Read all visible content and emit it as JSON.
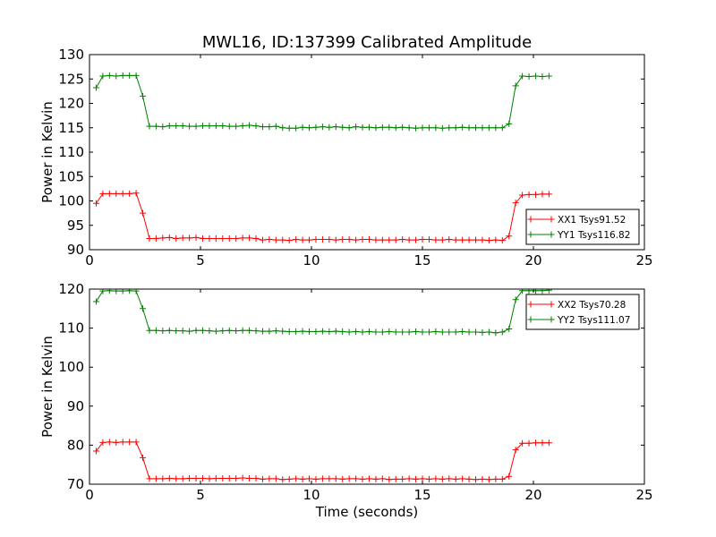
{
  "chart_data": [
    {
      "type": "line",
      "title": "MWL16, ID:137399 Calibrated Amplitude",
      "xlabel": "",
      "ylabel": "Power in Kelvin",
      "xlim": [
        0,
        25
      ],
      "ylim": [
        90,
        130
      ],
      "xticks": [
        "0",
        "5",
        "10",
        "15",
        "20",
        "25"
      ],
      "yticks": [
        "90",
        "95",
        "100",
        "105",
        "110",
        "115",
        "120",
        "125",
        "130"
      ],
      "grid": false,
      "legend": "lower-right",
      "x": [
        0.3,
        0.6,
        0.9,
        1.2,
        1.5,
        1.8,
        2.1,
        2.4,
        2.7,
        3.0,
        3.3,
        3.6,
        3.9,
        4.2,
        4.5,
        4.8,
        5.1,
        5.4,
        5.7,
        6.0,
        6.3,
        6.6,
        6.9,
        7.2,
        7.5,
        7.8,
        8.1,
        8.4,
        8.7,
        9.0,
        9.3,
        9.6,
        9.9,
        10.2,
        10.5,
        10.8,
        11.1,
        11.4,
        11.7,
        12.0,
        12.3,
        12.6,
        12.9,
        13.2,
        13.5,
        13.8,
        14.1,
        14.4,
        14.7,
        15.0,
        15.3,
        15.6,
        15.9,
        16.2,
        16.5,
        16.8,
        17.1,
        17.4,
        17.7,
        18.0,
        18.3,
        18.6,
        18.9,
        19.2,
        19.5,
        19.8,
        20.1,
        20.4,
        20.7
      ],
      "series": [
        {
          "name": "XX1 Tsys91.52",
          "color": "#ff0000",
          "values": [
            99.5,
            101.5,
            101.5,
            101.5,
            101.5,
            101.5,
            101.6,
            97.5,
            92.3,
            92.3,
            92.4,
            92.5,
            92.3,
            92.4,
            92.4,
            92.5,
            92.3,
            92.3,
            92.3,
            92.3,
            92.3,
            92.3,
            92.4,
            92.4,
            92.3,
            92.0,
            92.1,
            92.0,
            92.0,
            91.9,
            92.1,
            92.0,
            92.0,
            92.1,
            92.1,
            92.1,
            92.0,
            92.1,
            92.1,
            92.0,
            92.1,
            92.1,
            92.0,
            92.0,
            92.0,
            92.0,
            92.1,
            92.0,
            92.0,
            92.1,
            92.1,
            92.0,
            92.0,
            92.1,
            92.0,
            92.0,
            92.0,
            92.0,
            92.0,
            91.9,
            92.0,
            91.9,
            92.8,
            99.6,
            101.2,
            101.3,
            101.3,
            101.4,
            101.4
          ]
        },
        {
          "name": "YY1 Tsys116.82",
          "color": "#008000",
          "values": [
            123.2,
            125.6,
            125.7,
            125.6,
            125.7,
            125.7,
            125.7,
            121.5,
            115.3,
            115.3,
            115.2,
            115.4,
            115.4,
            115.4,
            115.3,
            115.3,
            115.4,
            115.4,
            115.4,
            115.4,
            115.3,
            115.3,
            115.4,
            115.5,
            115.4,
            115.2,
            115.2,
            115.3,
            115.0,
            114.9,
            114.9,
            115.1,
            115.0,
            115.1,
            115.2,
            115.1,
            115.2,
            115.1,
            115.0,
            115.2,
            115.1,
            115.1,
            115.0,
            115.1,
            115.1,
            115.0,
            115.1,
            115.0,
            114.9,
            115.0,
            115.0,
            115.0,
            114.9,
            115.0,
            115.0,
            115.1,
            115.0,
            115.0,
            115.0,
            115.0,
            115.0,
            115.0,
            115.8,
            123.6,
            125.6,
            125.5,
            125.6,
            125.5,
            125.6
          ]
        }
      ]
    },
    {
      "type": "line",
      "title": "",
      "xlabel": "Time (seconds)",
      "ylabel": "Power in Kelvin",
      "xlim": [
        0,
        25
      ],
      "ylim": [
        70,
        120
      ],
      "xticks": [
        "0",
        "5",
        "10",
        "15",
        "20",
        "25"
      ],
      "yticks": [
        "70",
        "80",
        "90",
        "100",
        "110",
        "120"
      ],
      "grid": false,
      "legend": "top-right",
      "x": [
        0.3,
        0.6,
        0.9,
        1.2,
        1.5,
        1.8,
        2.1,
        2.4,
        2.7,
        3.0,
        3.3,
        3.6,
        3.9,
        4.2,
        4.5,
        4.8,
        5.1,
        5.4,
        5.7,
        6.0,
        6.3,
        6.6,
        6.9,
        7.2,
        7.5,
        7.8,
        8.1,
        8.4,
        8.7,
        9.0,
        9.3,
        9.6,
        9.9,
        10.2,
        10.5,
        10.8,
        11.1,
        11.4,
        11.7,
        12.0,
        12.3,
        12.6,
        12.9,
        13.2,
        13.5,
        13.8,
        14.1,
        14.4,
        14.7,
        15.0,
        15.3,
        15.6,
        15.9,
        16.2,
        16.5,
        16.8,
        17.1,
        17.4,
        17.7,
        18.0,
        18.3,
        18.6,
        18.9,
        19.2,
        19.5,
        19.8,
        20.1,
        20.4,
        20.7
      ],
      "series": [
        {
          "name": "XX2 Tsys70.28",
          "color": "#ff0000",
          "values": [
            78.5,
            80.7,
            80.8,
            80.7,
            80.8,
            80.8,
            80.8,
            76.8,
            71.4,
            71.4,
            71.4,
            71.5,
            71.4,
            71.4,
            71.5,
            71.5,
            71.5,
            71.4,
            71.5,
            71.5,
            71.5,
            71.5,
            71.6,
            71.5,
            71.5,
            71.3,
            71.4,
            71.4,
            71.2,
            71.3,
            71.4,
            71.3,
            71.4,
            71.3,
            71.4,
            71.4,
            71.4,
            71.3,
            71.4,
            71.4,
            71.3,
            71.4,
            71.3,
            71.4,
            71.2,
            71.3,
            71.3,
            71.4,
            71.3,
            71.4,
            71.3,
            71.4,
            71.3,
            71.4,
            71.3,
            71.4,
            71.3,
            71.2,
            71.3,
            71.2,
            71.3,
            71.3,
            72.0,
            78.8,
            80.5,
            80.5,
            80.6,
            80.6,
            80.6
          ]
        },
        {
          "name": "YY2 Tsys111.07",
          "color": "#008000",
          "values": [
            116.8,
            119.5,
            119.6,
            119.5,
            119.5,
            119.6,
            119.5,
            115.0,
            109.4,
            109.4,
            109.3,
            109.4,
            109.3,
            109.3,
            109.2,
            109.4,
            109.4,
            109.3,
            109.2,
            109.3,
            109.4,
            109.3,
            109.4,
            109.4,
            109.3,
            109.2,
            109.2,
            109.3,
            109.2,
            109.1,
            109.1,
            109.2,
            109.1,
            109.1,
            109.2,
            109.1,
            109.2,
            109.1,
            109.0,
            109.1,
            109.0,
            109.1,
            109.0,
            109.0,
            109.1,
            109.0,
            109.0,
            109.0,
            109.1,
            109.0,
            109.0,
            109.1,
            109.0,
            109.0,
            109.0,
            109.1,
            109.0,
            109.0,
            108.9,
            109.0,
            108.8,
            109.0,
            109.8,
            117.3,
            119.6,
            119.6,
            119.6,
            119.6,
            119.7
          ]
        }
      ]
    }
  ]
}
